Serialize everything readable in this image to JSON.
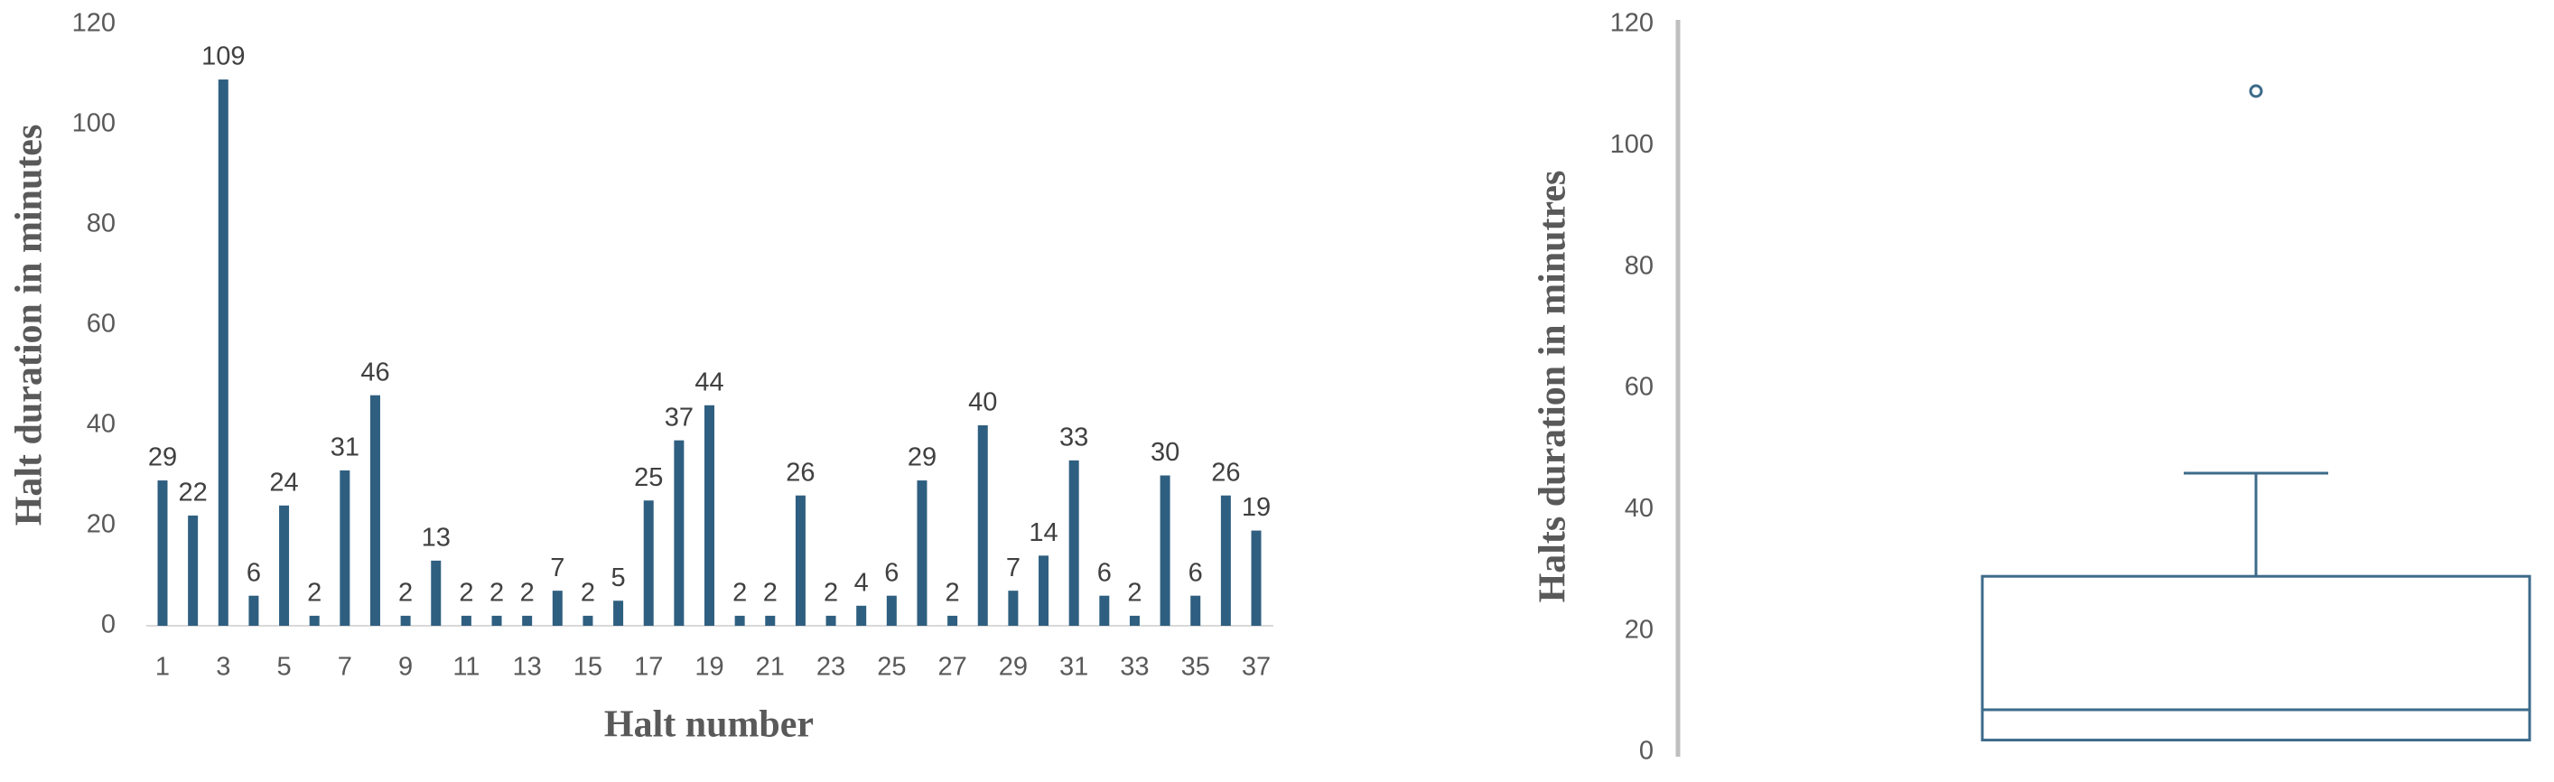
{
  "chart_data": [
    {
      "type": "bar",
      "x_label": "Halt number",
      "y_label": "Halt duration in minutes",
      "categories": [
        "1",
        null,
        "3",
        null,
        "5",
        null,
        "7",
        null,
        "9",
        null,
        "11",
        null,
        "13",
        null,
        "15",
        null,
        "17",
        null,
        "19",
        null,
        "21",
        null,
        "23",
        null,
        "25",
        null,
        "27",
        null,
        "29",
        null,
        "31",
        null,
        "33",
        null,
        "35",
        null,
        "37"
      ],
      "values": [
        29,
        22,
        109,
        6,
        24,
        2,
        31,
        46,
        2,
        13,
        2,
        2,
        2,
        7,
        2,
        5,
        25,
        37,
        44,
        2,
        2,
        26,
        2,
        4,
        6,
        29,
        2,
        40,
        7,
        14,
        33,
        6,
        2,
        30,
        6,
        26,
        19
      ],
      "color": "#2f5f80",
      "ylim": [
        0,
        120
      ],
      "yticks": [
        0,
        20,
        40,
        60,
        80,
        100,
        120
      ]
    },
    {
      "type": "box",
      "y_label": "Halts duration in minutres",
      "whisker_low": 2,
      "q1": 2,
      "median": 7,
      "q3": 29,
      "whisker_high": 46,
      "outliers": [
        109
      ],
      "color": "#3d6b8a",
      "ylim": [
        0,
        120
      ],
      "yticks": [
        0,
        20,
        40,
        60,
        80,
        100,
        120
      ]
    }
  ]
}
